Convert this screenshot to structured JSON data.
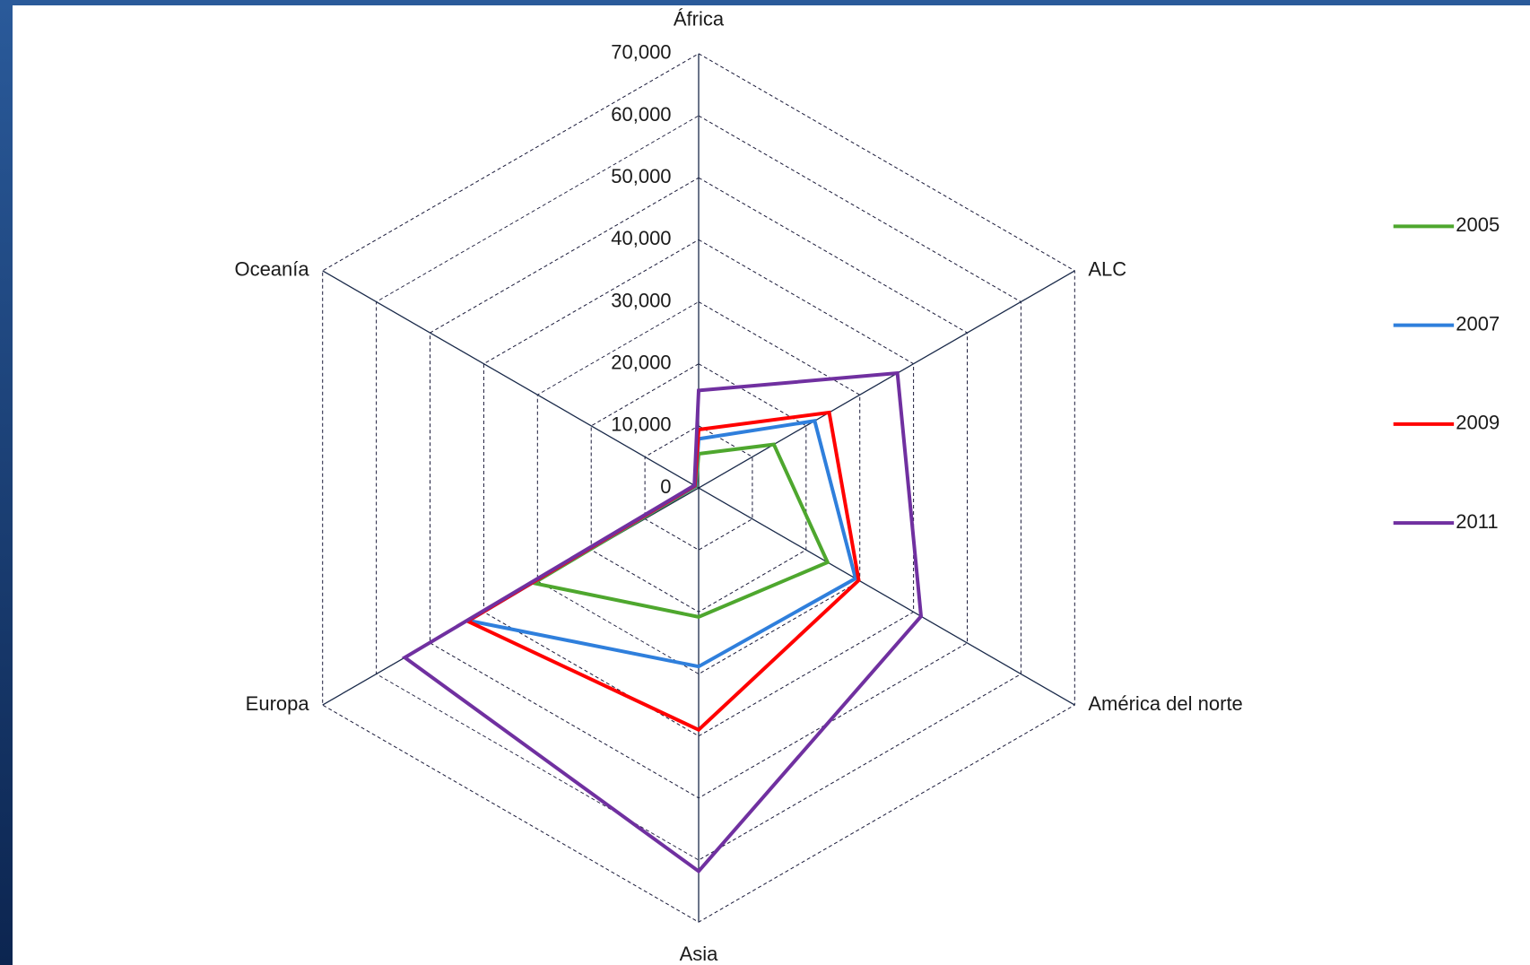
{
  "chart_data": {
    "type": "radar",
    "categories": [
      "África",
      "ALC",
      "América del norte",
      "Asia",
      "Europa",
      "Oceanía"
    ],
    "series": [
      {
        "name": "2005",
        "color": "#4ea72e",
        "values": [
          5500,
          14000,
          24000,
          20800,
          30700,
          500
        ]
      },
      {
        "name": "2007",
        "color": "#2f7fdc",
        "values": [
          7900,
          21600,
          29200,
          28800,
          42800,
          600
        ]
      },
      {
        "name": "2009",
        "color": "#ff0000",
        "values": [
          9400,
          24300,
          29800,
          39000,
          43000,
          700
        ]
      },
      {
        "name": "2011",
        "color": "#7030a0",
        "values": [
          15700,
          37000,
          41400,
          61800,
          54700,
          800
        ]
      }
    ],
    "ylim": [
      0,
      70000
    ],
    "yticks": [
      0,
      {
        "value": 10000,
        "label": "10,000"
      },
      {
        "value": 20000,
        "label": "20,000"
      },
      {
        "value": 30000,
        "label": "30,000"
      },
      {
        "value": 40000,
        "label": "40,000"
      },
      {
        "value": 50000,
        "label": "50,000"
      },
      {
        "value": 60000,
        "label": "60,000"
      },
      {
        "value": 70000,
        "label": "70,000"
      }
    ],
    "grid": true,
    "legend": "right"
  }
}
